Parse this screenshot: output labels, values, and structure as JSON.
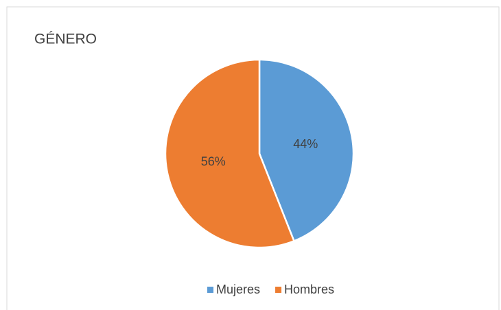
{
  "chart_data": {
    "type": "pie",
    "title": "GÉNERO",
    "categories": [
      "Mujeres",
      "Hombres"
    ],
    "values": [
      44,
      56
    ],
    "value_labels": [
      "44%",
      "56%"
    ],
    "colors": [
      "#5b9bd5",
      "#ed7d31"
    ],
    "legend": "bottom"
  }
}
